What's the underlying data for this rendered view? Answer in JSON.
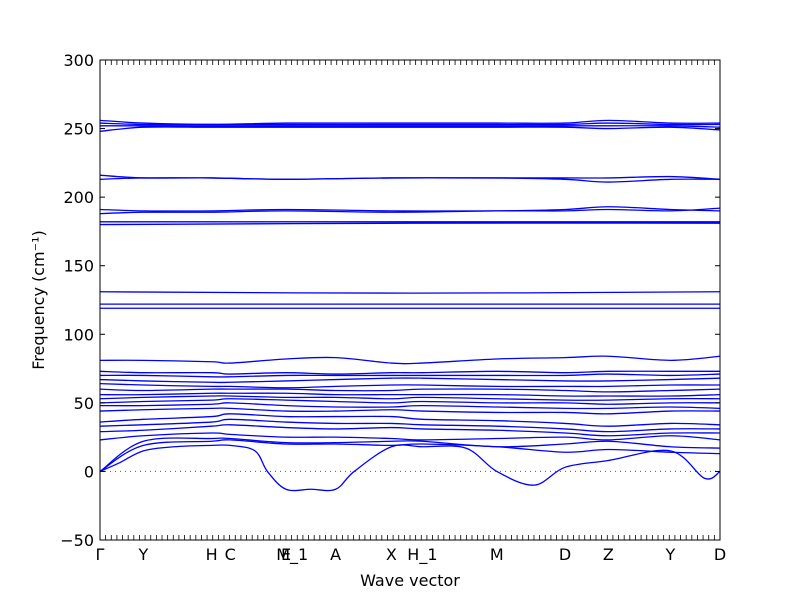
{
  "chart_data": {
    "type": "line",
    "xlabel": "Wave vector",
    "ylabel": "Frequency (cm⁻¹)",
    "ylim": [
      -50,
      300
    ],
    "xlim": [
      0,
      1
    ],
    "yticks": [
      -50,
      0,
      50,
      100,
      150,
      200,
      250,
      300
    ],
    "grid": false,
    "zero_line": {
      "y": 0,
      "style": "dotted"
    },
    "line_color": "#0000ff",
    "high_symmetry_points": [
      {
        "label": "Γ",
        "x": 0.0
      },
      {
        "label": "Y",
        "x": 0.07
      },
      {
        "label": "H",
        "x": 0.18
      },
      {
        "label": "C",
        "x": 0.21
      },
      {
        "label": "E",
        "x": 0.3
      },
      {
        "label": "M_1",
        "x": 0.31
      },
      {
        "label": "A",
        "x": 0.38
      },
      {
        "label": "X",
        "x": 0.47
      },
      {
        "label": "H_1",
        "x": 0.52
      },
      {
        "label": "M",
        "x": 0.64
      },
      {
        "label": "D",
        "x": 0.75
      },
      {
        "label": "Z",
        "x": 0.82
      },
      {
        "label": "Y",
        "x": 0.92
      },
      {
        "label": "D",
        "x": 1.0
      }
    ],
    "series": [
      {
        "x": [
          0,
          0.03,
          0.07,
          0.12,
          0.18,
          0.21,
          0.25,
          0.27,
          0.3,
          0.34,
          0.38,
          0.41,
          0.47,
          0.52,
          0.59,
          0.64,
          0.7,
          0.75,
          0.82,
          0.92,
          0.975,
          1.0
        ],
        "y": [
          0,
          6,
          15,
          18,
          19,
          19,
          15,
          0,
          -13,
          -13,
          -13,
          0,
          18,
          18,
          17,
          0,
          -10,
          3,
          8,
          15,
          -5,
          0
        ]
      },
      {
        "x": [
          0,
          0.07,
          0.18,
          0.21,
          0.3,
          0.38,
          0.47,
          0.52,
          0.64,
          0.75,
          0.82,
          0.92,
          1.0
        ],
        "y": [
          0,
          19,
          22,
          23,
          20,
          20,
          19,
          20,
          18,
          14,
          16,
          14,
          13
        ]
      },
      {
        "x": [
          0,
          0.07,
          0.18,
          0.21,
          0.3,
          0.38,
          0.47,
          0.52,
          0.64,
          0.75,
          0.82,
          0.92,
          1.0
        ],
        "y": [
          0,
          22,
          24,
          24,
          21,
          21,
          22,
          22,
          18,
          20,
          22,
          18,
          17
        ]
      },
      {
        "x": [
          0,
          0.07,
          0.18,
          0.21,
          0.3,
          0.38,
          0.47,
          0.52,
          0.64,
          0.75,
          0.82,
          0.92,
          1.0
        ],
        "y": [
          23,
          26,
          28,
          27,
          25,
          25,
          24,
          23,
          24,
          25,
          23,
          26,
          23
        ]
      },
      {
        "x": [
          0,
          0.07,
          0.18,
          0.21,
          0.3,
          0.38,
          0.47,
          0.52,
          0.64,
          0.75,
          0.82,
          0.92,
          1.0
        ],
        "y": [
          29,
          30,
          33,
          34,
          32,
          31,
          32,
          31,
          30,
          28,
          26,
          28,
          28
        ]
      },
      {
        "x": [
          0,
          0.07,
          0.18,
          0.21,
          0.3,
          0.38,
          0.47,
          0.52,
          0.64,
          0.75,
          0.82,
          0.92,
          1.0
        ],
        "y": [
          33,
          34,
          36,
          38,
          36,
          35,
          35,
          34,
          33,
          31,
          29,
          31,
          31
        ]
      },
      {
        "x": [
          0,
          0.07,
          0.18,
          0.21,
          0.3,
          0.38,
          0.47,
          0.52,
          0.64,
          0.75,
          0.82,
          0.92,
          1.0
        ],
        "y": [
          36,
          38,
          40,
          42,
          40,
          40,
          40,
          38,
          37,
          35,
          33,
          35,
          34
        ]
      },
      {
        "x": [
          0,
          0.07,
          0.18,
          0.21,
          0.3,
          0.38,
          0.47,
          0.52,
          0.64,
          0.75,
          0.82,
          0.92,
          1.0
        ],
        "y": [
          44,
          45,
          46,
          46,
          44,
          44,
          45,
          44,
          43,
          43,
          42,
          44,
          44
        ]
      },
      {
        "x": [
          0,
          0.07,
          0.18,
          0.21,
          0.3,
          0.38,
          0.47,
          0.52,
          0.64,
          0.75,
          0.82,
          0.92,
          1.0
        ],
        "y": [
          48,
          48,
          49,
          50,
          48,
          47,
          47,
          48,
          47,
          46,
          46,
          47,
          46
        ]
      },
      {
        "x": [
          0,
          0.07,
          0.18,
          0.21,
          0.3,
          0.38,
          0.47,
          0.52,
          0.64,
          0.75,
          0.82,
          0.92,
          1.0
        ],
        "y": [
          50,
          51,
          52,
          53,
          52,
          51,
          50,
          51,
          50,
          50,
          49,
          50,
          50
        ]
      },
      {
        "x": [
          0,
          0.07,
          0.18,
          0.21,
          0.3,
          0.38,
          0.47,
          0.52,
          0.64,
          0.75,
          0.82,
          0.92,
          1.0
        ],
        "y": [
          53,
          54,
          55,
          55,
          54,
          54,
          53,
          54,
          53,
          52,
          52,
          53,
          53
        ]
      },
      {
        "x": [
          0,
          0.07,
          0.18,
          0.21,
          0.3,
          0.38,
          0.47,
          0.52,
          0.64,
          0.75,
          0.82,
          0.92,
          1.0
        ],
        "y": [
          56,
          56,
          57,
          57,
          57,
          56,
          56,
          56,
          56,
          55,
          55,
          55,
          56
        ]
      },
      {
        "x": [
          0,
          0.07,
          0.18,
          0.21,
          0.3,
          0.38,
          0.47,
          0.52,
          0.64,
          0.75,
          0.82,
          0.92,
          1.0
        ],
        "y": [
          60,
          59,
          60,
          60,
          60,
          59,
          59,
          60,
          60,
          59,
          58,
          59,
          60
        ]
      },
      {
        "x": [
          0,
          0.07,
          0.18,
          0.21,
          0.3,
          0.38,
          0.47,
          0.52,
          0.64,
          0.75,
          0.82,
          0.92,
          1.0
        ],
        "y": [
          64,
          63,
          62,
          62,
          61,
          62,
          63,
          63,
          62,
          62,
          62,
          63,
          63
        ]
      },
      {
        "x": [
          0,
          0.07,
          0.18,
          0.21,
          0.3,
          0.38,
          0.47,
          0.52,
          0.64,
          0.75,
          0.82,
          0.92,
          1.0
        ],
        "y": [
          67,
          66,
          65,
          65,
          66,
          67,
          68,
          68,
          67,
          66,
          66,
          67,
          68
        ]
      },
      {
        "x": [
          0,
          0.07,
          0.18,
          0.21,
          0.3,
          0.38,
          0.47,
          0.52,
          0.64,
          0.75,
          0.82,
          0.92,
          1.0
        ],
        "y": [
          70,
          70,
          69,
          69,
          70,
          70,
          70,
          70,
          70,
          70,
          71,
          70,
          71
        ]
      },
      {
        "x": [
          0,
          0.07,
          0.18,
          0.21,
          0.3,
          0.38,
          0.47,
          0.52,
          0.64,
          0.75,
          0.82,
          0.92,
          1.0
        ],
        "y": [
          73,
          72,
          72,
          71,
          72,
          71,
          72,
          72,
          73,
          72,
          73,
          73,
          73
        ]
      },
      {
        "x": [
          0,
          0.07,
          0.18,
          0.21,
          0.3,
          0.38,
          0.47,
          0.52,
          0.64,
          0.75,
          0.82,
          0.92,
          1.0
        ],
        "y": [
          81,
          81,
          80,
          79,
          82,
          83,
          79,
          79,
          82,
          83,
          84,
          81,
          84
        ]
      },
      {
        "x": [
          0,
          0.5,
          1.0
        ],
        "y": [
          119,
          119,
          119
        ]
      },
      {
        "x": [
          0,
          0.5,
          1.0
        ],
        "y": [
          122,
          122,
          122
        ]
      },
      {
        "x": [
          0,
          0.5,
          1.0
        ],
        "y": [
          131,
          130,
          131
        ]
      },
      {
        "x": [
          0,
          0.5,
          1.0
        ],
        "y": [
          180,
          181,
          181
        ]
      },
      {
        "x": [
          0,
          0.5,
          1.0
        ],
        "y": [
          182,
          182,
          182
        ]
      },
      {
        "x": [
          0,
          0.07,
          0.18,
          0.3,
          0.47,
          0.64,
          0.75,
          0.82,
          0.92,
          1.0
        ],
        "y": [
          188,
          189,
          189,
          190,
          189,
          190,
          190,
          191,
          190,
          192
        ]
      },
      {
        "x": [
          0,
          0.07,
          0.18,
          0.3,
          0.47,
          0.64,
          0.75,
          0.82,
          0.92,
          1.0
        ],
        "y": [
          191,
          190,
          190,
          191,
          190,
          190,
          191,
          193,
          191,
          190
        ]
      },
      {
        "x": [
          0,
          0.07,
          0.18,
          0.3,
          0.47,
          0.64,
          0.75,
          0.82,
          0.92,
          1.0
        ],
        "y": [
          213,
          214,
          214,
          213,
          214,
          214,
          213,
          211,
          213,
          213
        ]
      },
      {
        "x": [
          0,
          0.07,
          0.18,
          0.3,
          0.47,
          0.64,
          0.75,
          0.82,
          0.92,
          1.0
        ],
        "y": [
          216,
          214,
          214,
          213,
          214,
          214,
          214,
          214,
          215,
          213
        ]
      },
      {
        "x": [
          0,
          0.07,
          0.18,
          0.3,
          0.47,
          0.64,
          0.75,
          0.82,
          0.92,
          1.0
        ],
        "y": [
          248,
          251,
          251,
          251,
          251,
          251,
          251,
          250,
          251,
          249
        ]
      },
      {
        "x": [
          0,
          0.07,
          0.18,
          0.3,
          0.47,
          0.64,
          0.75,
          0.82,
          0.92,
          1.0
        ],
        "y": [
          252,
          252,
          252,
          252,
          252,
          252,
          252,
          252,
          252,
          251
        ]
      },
      {
        "x": [
          0,
          0.07,
          0.18,
          0.3,
          0.47,
          0.64,
          0.75,
          0.82,
          0.92,
          1.0
        ],
        "y": [
          254,
          253,
          253,
          253,
          253,
          253,
          253,
          254,
          253,
          253
        ]
      },
      {
        "x": [
          0,
          0.07,
          0.18,
          0.3,
          0.47,
          0.64,
          0.75,
          0.82,
          0.92,
          1.0
        ],
        "y": [
          256,
          254,
          253,
          254,
          254,
          254,
          254,
          256,
          254,
          254
        ]
      }
    ]
  }
}
